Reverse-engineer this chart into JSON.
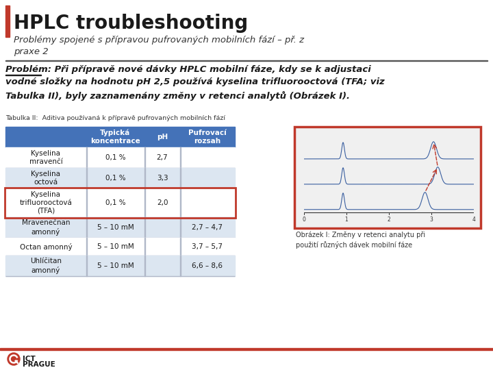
{
  "title": "HPLC troubleshooting",
  "subtitle": "Problémy spojené s přípravou pufrovaných mobilních fází – př. z\npraxe 2",
  "problem_line1": "Problém: Při přípravě nové dávky HPLC mobilní fáze, kdy se k adjustaci",
  "problem_line2": "vodné složky na hodnotu pH 2,5 používá kyselina trifluorooctová (TFA; viz",
  "problem_line3": "Tabulka II), byly zaznamenány změny v retenci analytů (Obrázek I).",
  "problem_prefix": "Problém:",
  "table_title": "Tabulka II:  Aditiva používaná k přípravě pufrovaných mobilních fází",
  "table_headers": [
    "",
    "Typická\nkoncentrace",
    "pH",
    "Pufrovací\nrozsah"
  ],
  "table_rows": [
    [
      "Kyselina\nmravenčí",
      "0,1 %",
      "2,7",
      ""
    ],
    [
      "Kyselina\noctová",
      "0,1 %",
      "3,3",
      ""
    ],
    [
      "Kyselina\ntrifluorooctová\n(TFA)",
      "0,1 %",
      "2,0",
      ""
    ],
    [
      "Mravenečnan\namonný",
      "5 – 10 mM",
      "",
      "2,7 – 4,7"
    ],
    [
      "Octan amonný",
      "5 – 10 mM",
      "",
      "3,7 – 5,7"
    ],
    [
      "Uhlíčitan\namonný",
      "5 – 10 mM",
      "",
      "6,6 – 8,6"
    ]
  ],
  "highlighted_row": 2,
  "header_bg": "#4472b8",
  "header_fg": "#ffffff",
  "row_bg_alt": "#dce6f1",
  "row_bg_normal": "#ffffff",
  "highlight_border": "#c0392b",
  "title_bar_color": "#c0392b",
  "figure_caption": "Obrázek I: Změny v retenci analytu při\npoužití různých dávek mobilní fáze",
  "logo_text1": "ICT",
  "logo_text2": "PRAGUE",
  "bottom_line_color": "#c0392b",
  "bg_color": "#ffffff",
  "separator_line_color": "#555555"
}
